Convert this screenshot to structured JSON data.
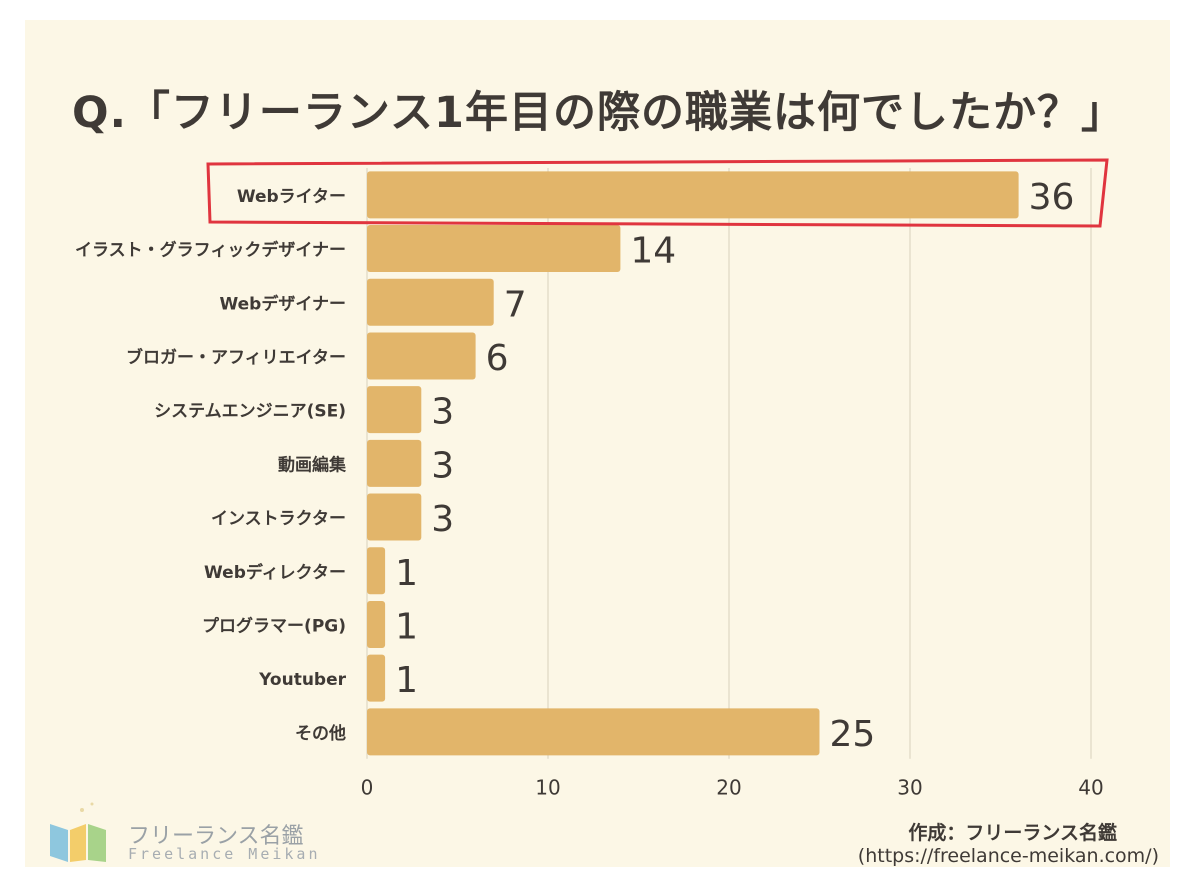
{
  "title": "Q.「フリーランス1年目の際の職業は何でしたか？」",
  "credit": "作成：フリーランス名鑑",
  "credit_url": "(https://freelance-meikan.com/)",
  "logo": {
    "name": "フリーランス名鑑",
    "sub": "Freelance Meikan"
  },
  "colors": {
    "bar": "#e2b56a",
    "highlight": "#e0353f",
    "background": "#fcf7e6",
    "text": "#3f3a36"
  },
  "chart_data": {
    "type": "bar",
    "orientation": "horizontal",
    "title": "Q.「フリーランス1年目の際の職業は何でしたか？」",
    "categories": [
      "Webライター",
      "イラスト・グラフィックデザイナー",
      "Webデザイナー",
      "ブロガー・アフィリエイター",
      "システムエンジニア(SE)",
      "動画編集",
      "インストラクター",
      "Webディレクター",
      "プログラマー(PG)",
      "Youtuber",
      "その他"
    ],
    "values": [
      36,
      14,
      7,
      6,
      3,
      3,
      3,
      1,
      1,
      1,
      25
    ],
    "xlim": [
      0,
      40
    ],
    "xticks": [
      0,
      10,
      20,
      30,
      40
    ],
    "grid": true,
    "highlighted_category": "Webライター"
  }
}
